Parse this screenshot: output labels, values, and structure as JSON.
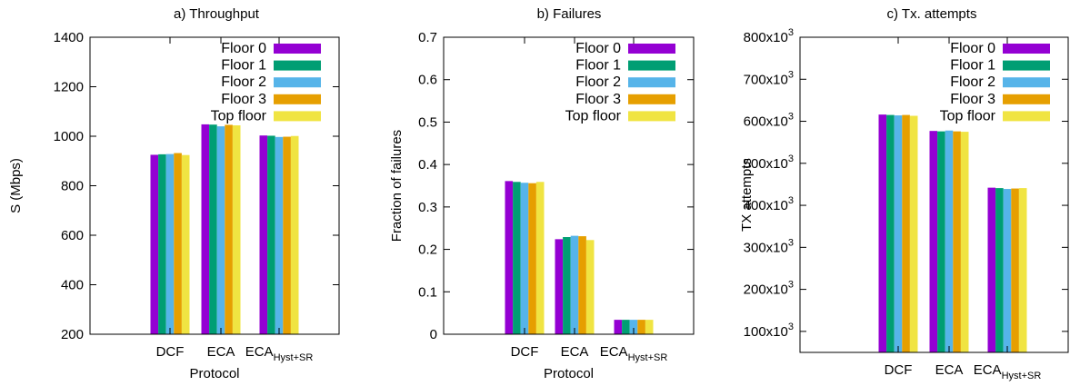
{
  "chart_data": [
    {
      "type": "bar",
      "title": "a) Throughput",
      "xlabel": "Protocol",
      "ylabel": "S (Mbps)",
      "ylim": [
        200,
        1400
      ],
      "yticks": [
        200,
        400,
        600,
        800,
        1000,
        1200,
        1400
      ],
      "ytick_labels": [
        "200",
        "400",
        "600",
        "800",
        "1000",
        "1200",
        "1400"
      ],
      "categories": [
        {
          "base": "DCF",
          "sub": ""
        },
        {
          "base": "ECA",
          "sub": ""
        },
        {
          "base": "ECA",
          "sub": "Hyst+SR"
        }
      ],
      "series": [
        {
          "name": "Floor 0",
          "values": [
            925,
            1048,
            1003
          ]
        },
        {
          "name": "Floor 1",
          "values": [
            927,
            1047,
            1002
          ]
        },
        {
          "name": "Floor 2",
          "values": [
            928,
            1040,
            997
          ]
        },
        {
          "name": "Floor 3",
          "values": [
            932,
            1046,
            998
          ]
        },
        {
          "name": "Top floor",
          "values": [
            924,
            1044,
            1001
          ]
        }
      ],
      "legend": "top-right",
      "grid": false
    },
    {
      "type": "bar",
      "title": "b) Failures",
      "xlabel": "Protocol",
      "ylabel": "Fraction of failures",
      "ylim": [
        0,
        0.7
      ],
      "yticks": [
        0,
        0.1,
        0.2,
        0.3,
        0.4,
        0.5,
        0.6,
        0.7
      ],
      "ytick_labels": [
        "0",
        "0.1",
        "0.2",
        "0.3",
        "0.4",
        "0.5",
        "0.6",
        "0.7"
      ],
      "categories": [
        {
          "base": "DCF",
          "sub": ""
        },
        {
          "base": "ECA",
          "sub": ""
        },
        {
          "base": "ECA",
          "sub": "Hyst+SR"
        }
      ],
      "series": [
        {
          "name": "Floor 0",
          "values": [
            0.361,
            0.224,
            0.034
          ]
        },
        {
          "name": "Floor 1",
          "values": [
            0.359,
            0.229,
            0.034
          ]
        },
        {
          "name": "Floor 2",
          "values": [
            0.357,
            0.232,
            0.034
          ]
        },
        {
          "name": "Floor 3",
          "values": [
            0.356,
            0.231,
            0.034
          ]
        },
        {
          "name": "Top floor",
          "values": [
            0.359,
            0.222,
            0.034
          ]
        }
      ],
      "legend": "top-right",
      "grid": false
    },
    {
      "type": "bar",
      "title": "c) Tx. attempts",
      "xlabel": "Protocol",
      "ylabel": "TX attempts",
      "ylim": [
        50000,
        800000
      ],
      "yticks": [
        100000,
        200000,
        300000,
        400000,
        500000,
        600000,
        700000,
        800000
      ],
      "ytick_labels": [
        {
          "base": "100x10",
          "exp": "3"
        },
        {
          "base": "200x10",
          "exp": "3"
        },
        {
          "base": "300x10",
          "exp": "3"
        },
        {
          "base": "400x10",
          "exp": "3"
        },
        {
          "base": "500x10",
          "exp": "3"
        },
        {
          "base": "600x10",
          "exp": "3"
        },
        {
          "base": "700x10",
          "exp": "3"
        },
        {
          "base": "800x10",
          "exp": "3"
        }
      ],
      "categories": [
        {
          "base": "DCF",
          "sub": ""
        },
        {
          "base": "ECA",
          "sub": ""
        },
        {
          "base": "ECA",
          "sub": "Hyst+SR"
        }
      ],
      "series": [
        {
          "name": "Floor 0",
          "values": [
            616000,
            577000,
            442000
          ]
        },
        {
          "name": "Floor 1",
          "values": [
            615000,
            576000,
            441000
          ]
        },
        {
          "name": "Floor 2",
          "values": [
            614000,
            578000,
            439000
          ]
        },
        {
          "name": "Floor 3",
          "values": [
            615000,
            576000,
            440000
          ]
        },
        {
          "name": "Top floor",
          "values": [
            613000,
            575000,
            441000
          ]
        }
      ],
      "legend": "top-right",
      "grid": false
    }
  ],
  "colors": [
    "#9400d3",
    "#009e73",
    "#56b4e9",
    "#e69f00",
    "#f0e442"
  ]
}
